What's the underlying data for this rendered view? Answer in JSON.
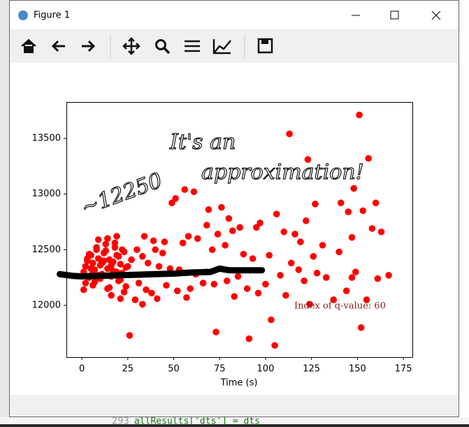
{
  "window": {
    "title": "Figure 1"
  },
  "background": {
    "line_number": "293",
    "code": "allResults['dts'] = dts"
  },
  "chart_data": {
    "type": "scatter",
    "xlabel": "Time (s)",
    "color": "#ff0000",
    "xlim": [
      -8.4,
      179.9
    ],
    "ylim": [
      11535,
      13826
    ],
    "xticks": [
      0,
      25,
      50,
      75,
      100,
      125,
      150,
      175
    ],
    "yticks": [
      12000,
      12500,
      13000,
      13500
    ],
    "x": [
      151,
      113,
      123,
      156,
      148,
      160,
      153,
      127,
      141,
      106,
      122,
      145,
      158,
      163,
      147,
      119,
      131,
      110,
      116,
      140,
      102,
      114,
      126,
      149,
      161,
      167,
      128,
      118,
      121,
      108,
      100,
      133,
      144,
      137,
      155,
      124,
      103,
      152,
      105,
      91,
      73,
      26,
      147,
      111,
      56,
      61,
      49,
      51,
      69,
      76,
      68,
      80,
      86,
      97,
      95,
      82,
      74,
      63,
      45,
      40,
      55,
      58,
      71,
      78,
      88,
      93,
      33,
      36,
      42,
      48,
      53,
      62,
      66,
      72,
      79,
      85,
      90,
      96,
      31,
      35,
      38,
      46,
      52,
      59,
      68,
      44,
      27,
      30,
      39,
      34,
      29,
      33,
      41,
      57,
      83,
      1,
      2,
      3,
      4,
      5,
      6,
      7,
      8,
      9,
      10,
      11,
      12,
      13,
      14,
      15,
      16,
      17,
      18,
      19,
      20,
      21,
      22,
      23,
      24,
      2,
      4,
      6,
      8,
      10,
      12,
      14,
      16,
      18,
      20,
      22,
      24,
      3,
      5,
      7,
      9,
      11,
      13,
      15,
      17,
      19,
      21,
      23,
      25,
      1,
      6,
      11,
      16,
      21,
      9,
      14,
      19
    ],
    "values": [
      13710,
      13540,
      13310,
      13320,
      13050,
      12920,
      12850,
      12910,
      12920,
      12820,
      12760,
      12840,
      12690,
      12660,
      12610,
      12570,
      12540,
      12660,
      12640,
      12480,
      12450,
      12380,
      12440,
      12300,
      12240,
      12270,
      12290,
      12320,
      12220,
      12270,
      12190,
      12250,
      12130,
      12050,
      12050,
      12010,
      11870,
      11800,
      11640,
      11700,
      11760,
      11730,
      12250,
      12090,
      13040,
      13020,
      12920,
      12960,
      12860,
      12880,
      12720,
      12780,
      12700,
      12740,
      12700,
      12670,
      12640,
      12600,
      12570,
      12500,
      12560,
      12620,
      12500,
      12540,
      12460,
      12420,
      12440,
      12380,
      12350,
      12330,
      12320,
      12280,
      12200,
      12190,
      12220,
      12260,
      12150,
      12110,
      12200,
      12140,
      12110,
      12180,
      12130,
      12150,
      12300,
      12470,
      12410,
      12500,
      12580,
      12620,
      12050,
      12010,
      12060,
      12070,
      12080,
      12300,
      12350,
      12400,
      12250,
      12450,
      12380,
      12320,
      12500,
      12420,
      12360,
      12280,
      12470,
      12550,
      12330,
      12410,
      12260,
      12390,
      12520,
      12300,
      12440,
      12370,
      12290,
      12480,
      12340,
      12200,
      12460,
      12180,
      12520,
      12240,
      12400,
      12150,
      12360,
      12560,
      12220,
      12500,
      12170,
      12420,
      12330,
      12210,
      12270,
      12380,
      12490,
      12160,
      12310,
      12450,
      12230,
      12120,
      12350,
      12140,
      12290,
      12400,
      12090,
      12060,
      12590,
      12600,
      12620
    ],
    "index_label": {
      "text": "Index of q-value: 60",
      "color": "#8b1a1a"
    },
    "handwriting": [
      "~12250",
      "It's an",
      "approximation!"
    ],
    "line": {
      "color": "#000000",
      "x": [
        -12,
        -5,
        0,
        10,
        20,
        30,
        40,
        50,
        60,
        70,
        75,
        80,
        90,
        98
      ],
      "values": [
        12280,
        12265,
        12260,
        12265,
        12270,
        12275,
        12280,
        12285,
        12295,
        12300,
        12330,
        12315,
        12315,
        12315
      ]
    }
  }
}
